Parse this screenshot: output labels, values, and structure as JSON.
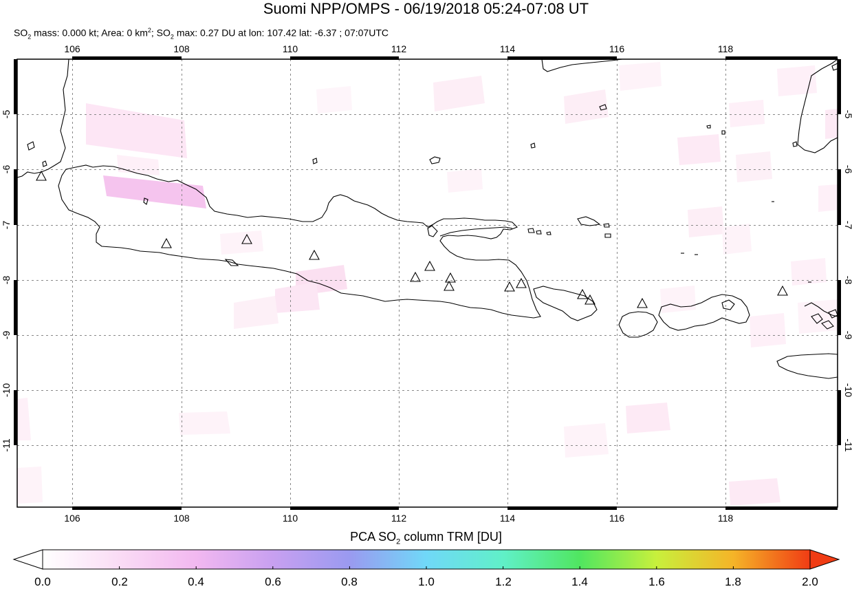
{
  "title": "Suomi NPP/OMPS - 06/19/2018 05:24-07:08 UT",
  "subtitle": {
    "p1": "SO",
    "s1": "2",
    "p2": " mass: 0.000 kt; Area: 0 km",
    "sup": "2",
    "p3": "; SO",
    "s2": "2",
    "p4": " max: 0.27 DU at lon: 107.42 lat: -6.37 ; 07:07UTC"
  },
  "map": {
    "lon_range": [
      105,
      120
    ],
    "lat_range": [
      -12,
      -3.9
    ],
    "lon_ticks": [
      "106",
      "108",
      "110",
      "112",
      "114",
      "116",
      "118"
    ],
    "lat_ticks": [
      "-5",
      "-6",
      "-7",
      "-8",
      "-9",
      "-10",
      "-11"
    ],
    "coastline_color": "#000000",
    "grid": "dashed",
    "volcano_marker": "triangle"
  },
  "colorbar": {
    "title_p1": "PCA SO",
    "title_sub": "2",
    "title_p2": " column TRM [DU]",
    "ticks": [
      "0.0",
      "0.2",
      "0.4",
      "0.6",
      "0.8",
      "1.0",
      "1.2",
      "1.4",
      "1.6",
      "1.8",
      "2.0"
    ],
    "range": [
      0,
      2
    ],
    "colors": [
      "#ffffff",
      "#f5c8f5",
      "#d4a5f0",
      "#9a9af0",
      "#6ec8f5",
      "#70f0f0",
      "#50e67a",
      "#7ae650",
      "#e6f03c",
      "#f5a028",
      "#f03c14"
    ]
  }
}
